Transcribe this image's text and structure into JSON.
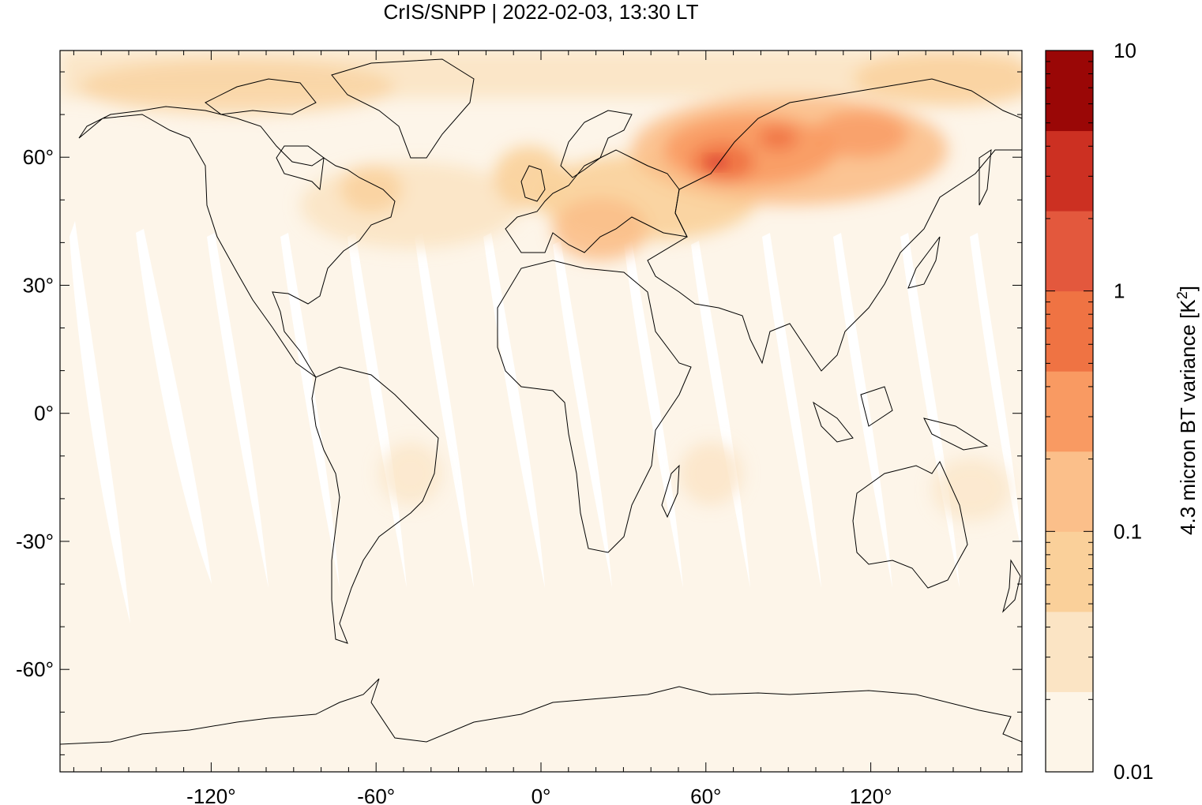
{
  "title": "CrIS/SNPP | 2022-02-03, 13:30 LT",
  "x_ticks": [
    "-120°",
    "-60°",
    "0°",
    "60°",
    "120°"
  ],
  "x_tick_values": [
    -120,
    -60,
    0,
    60,
    120
  ],
  "y_ticks": [
    "60°",
    "30°",
    "0°",
    "-30°",
    "-60°"
  ],
  "y_tick_values": [
    60,
    30,
    0,
    -30,
    -60
  ],
  "lon_range": [
    -175,
    175
  ],
  "lat_range": [
    -84,
    85
  ],
  "colorbar": {
    "label": "4.3 micron BT variance [K",
    "label_sup": "2",
    "label_end": "]",
    "tick_labels": [
      "10",
      "1",
      "0.1",
      "0.01"
    ],
    "tick_values": [
      10,
      1,
      0.1,
      0.01
    ],
    "scale": "log",
    "range": [
      0.01,
      10
    ],
    "colors": [
      "#fdf5e8",
      "#fbe4c4",
      "#fad09a",
      "#fbbf8a",
      "#f99a62",
      "#ef7343",
      "#e3583d",
      "#cc3022",
      "#9a0706"
    ]
  },
  "background_color": "#fdf5e9",
  "chart_data": {
    "type": "heatmap",
    "title": "CrIS/SNPP | 2022-02-03, 13:30 LT",
    "xlabel": "",
    "ylabel": "",
    "colorbar_label": "4.3 micron BT variance [K2]",
    "xlim": [
      -175,
      175
    ],
    "ylim": [
      -84,
      85
    ],
    "zlim": [
      0.01,
      10
    ],
    "z_scale": "log",
    "x_ticks": [
      -120,
      -60,
      0,
      60,
      120
    ],
    "y_ticks": [
      60,
      30,
      0,
      -30,
      -60
    ]
  }
}
